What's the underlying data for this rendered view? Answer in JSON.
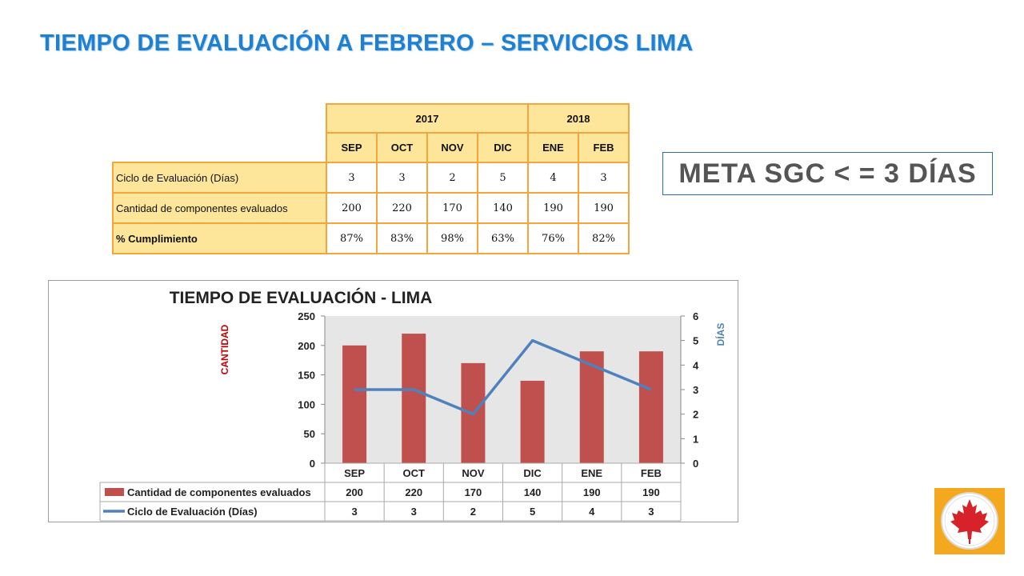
{
  "page": {
    "title": "TIEMPO DE EVALUACIÓN A FEBRERO – SERVICIOS LIMA",
    "meta": "META SGC < = 3 DÍAS"
  },
  "summary_table": {
    "years": [
      {
        "label": "2017",
        "span": 4
      },
      {
        "label": "2018",
        "span": 2
      }
    ],
    "months": [
      "SEP",
      "OCT",
      "NOV",
      "DIC",
      "ENE",
      "FEB"
    ],
    "rows": [
      {
        "label": "Ciclo de Evaluación (Días)",
        "values": [
          "3",
          "3",
          "2",
          "5",
          "4",
          "3"
        ]
      },
      {
        "label": "Cantidad de componentes evaluados",
        "values": [
          "200",
          "220",
          "170",
          "140",
          "190",
          "190"
        ]
      },
      {
        "label": "% Cumplimiento",
        "values": [
          "87%",
          "83%",
          "98%",
          "63%",
          "76%",
          "82%"
        ]
      }
    ]
  },
  "chart_data": {
    "type": "bar",
    "title": "TIEMPO DE EVALUACIÓN - LIMA",
    "categories": [
      "SEP",
      "OCT",
      "NOV",
      "DIC",
      "ENE",
      "FEB"
    ],
    "ylabel": "CANTIDAD",
    "y2label": "DÍAS",
    "ylim": [
      0,
      250
    ],
    "y2lim": [
      0,
      6
    ],
    "yticks": [
      0,
      50,
      100,
      150,
      200,
      250
    ],
    "y2ticks": [
      0,
      1,
      2,
      3,
      4,
      5,
      6
    ],
    "grid": false,
    "legend": "data-table-bottom",
    "series": [
      {
        "name": "Cantidad de componentes evaluados",
        "type": "bar",
        "axis": "left",
        "values": [
          200,
          220,
          170,
          140,
          190,
          190
        ],
        "color": "#c0504d"
      },
      {
        "name": "Ciclo de Evaluación (Días)",
        "type": "line",
        "axis": "right",
        "values": [
          3,
          3,
          2,
          5,
          4,
          3
        ],
        "color": "#4f81bd"
      }
    ],
    "colors": {
      "plot_bg": "#e6e6e6",
      "ylabel": "#c00000",
      "y2label": "#4f81bd"
    }
  },
  "logo": {
    "name": "maple-leaf-logo",
    "bg": "#f4a81d"
  }
}
